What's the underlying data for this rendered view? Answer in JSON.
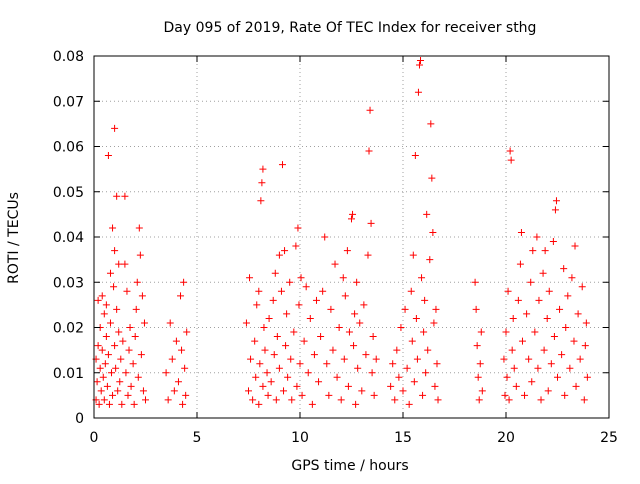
{
  "chart_data": {
    "type": "scatter",
    "title": "Day 095 of 2019, Rate Of TEC Index for receiver sthg",
    "xlabel": "GPS time / hours",
    "ylabel": "ROTI / TECUs",
    "xlim": [
      0,
      25
    ],
    "ylim": [
      0,
      0.08
    ],
    "xticks": [
      0,
      5,
      10,
      15,
      20,
      25
    ],
    "xtick_labels": [
      "0",
      "5",
      "10",
      "15",
      "20",
      "25"
    ],
    "yticks": [
      0,
      0.01,
      0.02,
      0.03,
      0.04,
      0.05,
      0.06,
      0.07,
      0.08
    ],
    "ytick_labels": [
      "0",
      "0.01",
      "0.02",
      "0.03",
      "0.04",
      "0.05",
      "0.06",
      "0.07",
      "0.08"
    ],
    "grid": true,
    "legend": "none",
    "marker": "+",
    "color": "#ff0000",
    "series": [
      {
        "name": "ROTI",
        "points": [
          [
            0.1,
            0.013
          ],
          [
            0.1,
            0.004
          ],
          [
            0.15,
            0.008
          ],
          [
            0.2,
            0.016
          ],
          [
            0.2,
            0.026
          ],
          [
            0.25,
            0.003
          ],
          [
            0.3,
            0.011
          ],
          [
            0.3,
            0.02
          ],
          [
            0.35,
            0.006
          ],
          [
            0.4,
            0.015
          ],
          [
            0.4,
            0.027
          ],
          [
            0.45,
            0.009
          ],
          [
            0.5,
            0.004
          ],
          [
            0.5,
            0.023
          ],
          [
            0.55,
            0.012
          ],
          [
            0.6,
            0.018
          ],
          [
            0.6,
            0.025
          ],
          [
            0.65,
            0.007
          ],
          [
            0.7,
            0.058
          ],
          [
            0.7,
            0.014
          ],
          [
            0.75,
            0.003
          ],
          [
            0.8,
            0.021
          ],
          [
            0.8,
            0.032
          ],
          [
            0.85,
            0.01
          ],
          [
            0.9,
            0.042
          ],
          [
            0.9,
            0.005
          ],
          [
            0.95,
            0.029
          ],
          [
            1.0,
            0.064
          ],
          [
            1.0,
            0.016
          ],
          [
            1.0,
            0.037
          ],
          [
            1.05,
            0.011
          ],
          [
            1.1,
            0.049
          ],
          [
            1.1,
            0.024
          ],
          [
            1.15,
            0.006
          ],
          [
            1.2,
            0.019
          ],
          [
            1.2,
            0.034
          ],
          [
            1.25,
            0.008
          ],
          [
            1.3,
            0.013
          ],
          [
            1.35,
            0.003
          ],
          [
            1.4,
            0.017
          ],
          [
            1.5,
            0.049
          ],
          [
            1.5,
            0.034
          ],
          [
            1.55,
            0.01
          ],
          [
            1.6,
            0.028
          ],
          [
            1.65,
            0.005
          ],
          [
            1.7,
            0.015
          ],
          [
            1.75,
            0.02
          ],
          [
            1.8,
            0.007
          ],
          [
            1.9,
            0.012
          ],
          [
            1.95,
            0.003
          ],
          [
            2.0,
            0.018
          ],
          [
            2.05,
            0.024
          ],
          [
            2.1,
            0.03
          ],
          [
            2.15,
            0.009
          ],
          [
            2.2,
            0.042
          ],
          [
            2.25,
            0.036
          ],
          [
            2.3,
            0.014
          ],
          [
            2.35,
            0.027
          ],
          [
            2.4,
            0.006
          ],
          [
            2.45,
            0.021
          ],
          [
            2.5,
            0.004
          ],
          [
            3.5,
            0.01
          ],
          [
            3.6,
            0.004
          ],
          [
            3.7,
            0.021
          ],
          [
            3.8,
            0.013
          ],
          [
            3.9,
            0.006
          ],
          [
            4.0,
            0.017
          ],
          [
            4.1,
            0.008
          ],
          [
            4.2,
            0.027
          ],
          [
            4.25,
            0.015
          ],
          [
            4.3,
            0.003
          ],
          [
            4.35,
            0.03
          ],
          [
            4.4,
            0.011
          ],
          [
            4.45,
            0.005
          ],
          [
            4.5,
            0.019
          ],
          [
            7.4,
            0.021
          ],
          [
            7.5,
            0.006
          ],
          [
            7.55,
            0.031
          ],
          [
            7.6,
            0.013
          ],
          [
            7.7,
            0.004
          ],
          [
            7.8,
            0.017
          ],
          [
            7.85,
            0.009
          ],
          [
            7.9,
            0.025
          ],
          [
            8.0,
            0.003
          ],
          [
            8.0,
            0.028
          ],
          [
            8.05,
            0.012
          ],
          [
            8.1,
            0.048
          ],
          [
            8.15,
            0.052
          ],
          [
            8.2,
            0.055
          ],
          [
            8.2,
            0.007
          ],
          [
            8.25,
            0.02
          ],
          [
            8.3,
            0.015
          ],
          [
            8.4,
            0.01
          ],
          [
            8.45,
            0.005
          ],
          [
            8.5,
            0.022
          ],
          [
            8.6,
            0.008
          ],
          [
            8.7,
            0.026
          ],
          [
            8.75,
            0.014
          ],
          [
            8.8,
            0.032
          ],
          [
            8.85,
            0.004
          ],
          [
            8.9,
            0.018
          ],
          [
            9.0,
            0.036
          ],
          [
            9.0,
            0.011
          ],
          [
            9.1,
            0.028
          ],
          [
            9.15,
            0.056
          ],
          [
            9.2,
            0.006
          ],
          [
            9.25,
            0.037
          ],
          [
            9.3,
            0.016
          ],
          [
            9.35,
            0.023
          ],
          [
            9.4,
            0.009
          ],
          [
            9.5,
            0.03
          ],
          [
            9.55,
            0.013
          ],
          [
            9.6,
            0.004
          ],
          [
            9.7,
            0.019
          ],
          [
            9.8,
            0.038
          ],
          [
            9.85,
            0.007
          ],
          [
            9.9,
            0.042
          ],
          [
            9.95,
            0.025
          ],
          [
            10.0,
            0.012
          ],
          [
            10.05,
            0.031
          ],
          [
            10.1,
            0.005
          ],
          [
            10.2,
            0.017
          ],
          [
            10.3,
            0.029
          ],
          [
            10.4,
            0.01
          ],
          [
            10.5,
            0.022
          ],
          [
            10.6,
            0.003
          ],
          [
            10.7,
            0.014
          ],
          [
            10.8,
            0.026
          ],
          [
            10.9,
            0.008
          ],
          [
            11.0,
            0.018
          ],
          [
            11.1,
            0.028
          ],
          [
            11.2,
            0.04
          ],
          [
            11.3,
            0.012
          ],
          [
            11.4,
            0.005
          ],
          [
            11.5,
            0.024
          ],
          [
            11.6,
            0.015
          ],
          [
            11.7,
            0.034
          ],
          [
            11.8,
            0.009
          ],
          [
            11.9,
            0.02
          ],
          [
            12.0,
            0.004
          ],
          [
            12.1,
            0.031
          ],
          [
            12.15,
            0.013
          ],
          [
            12.2,
            0.027
          ],
          [
            12.3,
            0.037
          ],
          [
            12.35,
            0.007
          ],
          [
            12.4,
            0.019
          ],
          [
            12.5,
            0.044
          ],
          [
            12.55,
            0.045
          ],
          [
            12.6,
            0.016
          ],
          [
            12.65,
            0.023
          ],
          [
            12.7,
            0.003
          ],
          [
            12.75,
            0.03
          ],
          [
            12.8,
            0.011
          ],
          [
            12.9,
            0.021
          ],
          [
            13.0,
            0.006
          ],
          [
            13.1,
            0.025
          ],
          [
            13.2,
            0.014
          ],
          [
            13.3,
            0.036
          ],
          [
            13.35,
            0.059
          ],
          [
            13.4,
            0.068
          ],
          [
            13.45,
            0.043
          ],
          [
            13.5,
            0.01
          ],
          [
            13.55,
            0.018
          ],
          [
            13.6,
            0.005
          ],
          [
            13.7,
            0.013
          ],
          [
            14.4,
            0.007
          ],
          [
            14.5,
            0.012
          ],
          [
            14.6,
            0.004
          ],
          [
            14.7,
            0.015
          ],
          [
            14.8,
            0.009
          ],
          [
            14.9,
            0.02
          ],
          [
            15.0,
            0.006
          ],
          [
            15.1,
            0.024
          ],
          [
            15.2,
            0.011
          ],
          [
            15.3,
            0.003
          ],
          [
            15.4,
            0.028
          ],
          [
            15.45,
            0.017
          ],
          [
            15.5,
            0.036
          ],
          [
            15.55,
            0.008
          ],
          [
            15.6,
            0.058
          ],
          [
            15.65,
            0.022
          ],
          [
            15.7,
            0.013
          ],
          [
            15.75,
            0.072
          ],
          [
            15.8,
            0.078
          ],
          [
            15.85,
            0.079
          ],
          [
            15.9,
            0.031
          ],
          [
            15.95,
            0.005
          ],
          [
            16.0,
            0.019
          ],
          [
            16.05,
            0.026
          ],
          [
            16.1,
            0.01
          ],
          [
            16.15,
            0.045
          ],
          [
            16.2,
            0.015
          ],
          [
            16.3,
            0.035
          ],
          [
            16.35,
            0.065
          ],
          [
            16.4,
            0.053
          ],
          [
            16.45,
            0.041
          ],
          [
            16.5,
            0.021
          ],
          [
            16.55,
            0.007
          ],
          [
            16.6,
            0.024
          ],
          [
            16.65,
            0.012
          ],
          [
            16.7,
            0.004
          ],
          [
            18.5,
            0.03
          ],
          [
            18.55,
            0.024
          ],
          [
            18.6,
            0.016
          ],
          [
            18.65,
            0.009
          ],
          [
            18.7,
            0.004
          ],
          [
            18.75,
            0.012
          ],
          [
            18.8,
            0.019
          ],
          [
            18.85,
            0.006
          ],
          [
            19.9,
            0.013
          ],
          [
            19.95,
            0.005
          ],
          [
            20.0,
            0.019
          ],
          [
            20.05,
            0.009
          ],
          [
            20.1,
            0.028
          ],
          [
            20.15,
            0.004
          ],
          [
            20.2,
            0.059
          ],
          [
            20.25,
            0.057
          ],
          [
            20.3,
            0.015
          ],
          [
            20.35,
            0.022
          ],
          [
            20.4,
            0.011
          ],
          [
            20.5,
            0.007
          ],
          [
            20.6,
            0.026
          ],
          [
            20.7,
            0.034
          ],
          [
            20.75,
            0.041
          ],
          [
            20.8,
            0.017
          ],
          [
            20.9,
            0.005
          ],
          [
            21.0,
            0.023
          ],
          [
            21.1,
            0.013
          ],
          [
            21.2,
            0.03
          ],
          [
            21.25,
            0.008
          ],
          [
            21.3,
            0.037
          ],
          [
            21.4,
            0.019
          ],
          [
            21.5,
            0.04
          ],
          [
            21.55,
            0.011
          ],
          [
            21.6,
            0.026
          ],
          [
            21.7,
            0.004
          ],
          [
            21.8,
            0.032
          ],
          [
            21.85,
            0.015
          ],
          [
            21.9,
            0.037
          ],
          [
            22.0,
            0.022
          ],
          [
            22.05,
            0.006
          ],
          [
            22.1,
            0.028
          ],
          [
            22.2,
            0.012
          ],
          [
            22.3,
            0.039
          ],
          [
            22.35,
            0.018
          ],
          [
            22.4,
            0.046
          ],
          [
            22.45,
            0.048
          ],
          [
            22.5,
            0.009
          ],
          [
            22.6,
            0.024
          ],
          [
            22.7,
            0.014
          ],
          [
            22.8,
            0.033
          ],
          [
            22.85,
            0.005
          ],
          [
            22.9,
            0.02
          ],
          [
            23.0,
            0.027
          ],
          [
            23.1,
            0.011
          ],
          [
            23.2,
            0.031
          ],
          [
            23.3,
            0.017
          ],
          [
            23.35,
            0.038
          ],
          [
            23.4,
            0.007
          ],
          [
            23.5,
            0.023
          ],
          [
            23.6,
            0.013
          ],
          [
            23.7,
            0.029
          ],
          [
            23.8,
            0.004
          ],
          [
            23.85,
            0.016
          ],
          [
            23.9,
            0.021
          ],
          [
            23.95,
            0.009
          ]
        ]
      }
    ]
  }
}
